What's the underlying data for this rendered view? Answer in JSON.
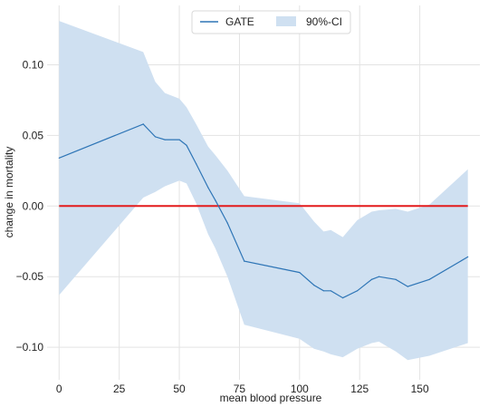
{
  "chart_data": {
    "type": "line",
    "xlabel": "mean blood pressure",
    "ylabel": "change in mortality",
    "xlim": [
      -5,
      175
    ],
    "ylim": [
      -0.123,
      0.142
    ],
    "xticks": [
      0,
      25,
      50,
      75,
      100,
      125,
      150
    ],
    "xtick_labels": [
      "0",
      "25",
      "50",
      "75",
      "100",
      "125",
      "150"
    ],
    "yticks": [
      -0.1,
      -0.05,
      0.0,
      0.05,
      0.1
    ],
    "ytick_labels": [
      "−0.10",
      "−0.05",
      "0.00",
      "0.05",
      "0.10"
    ],
    "grid": true,
    "legend_position": "top-center",
    "series": [
      {
        "name": "GATE",
        "color": "#2e75b6",
        "x": [
          0,
          35,
          40,
          44,
          50,
          53,
          57,
          62,
          65,
          70,
          77,
          100,
          106,
          110,
          113,
          118,
          124,
          130,
          133,
          140,
          145,
          154,
          170
        ],
        "y": [
          0.034,
          0.058,
          0.049,
          0.047,
          0.047,
          0.043,
          0.03,
          0.013,
          0.004,
          -0.012,
          -0.039,
          -0.047,
          -0.056,
          -0.06,
          -0.06,
          -0.065,
          -0.06,
          -0.052,
          -0.05,
          -0.052,
          -0.057,
          -0.052,
          -0.036
        ]
      }
    ],
    "band": {
      "name": "90%-CI",
      "color": "#cfe0f1",
      "x": [
        0,
        35,
        40,
        44,
        50,
        53,
        57,
        62,
        65,
        70,
        77,
        100,
        106,
        110,
        113,
        118,
        124,
        130,
        133,
        140,
        145,
        154,
        170
      ],
      "upper": [
        0.131,
        0.109,
        0.088,
        0.08,
        0.076,
        0.07,
        0.058,
        0.042,
        0.036,
        0.025,
        0.007,
        0.002,
        -0.011,
        -0.018,
        -0.017,
        -0.022,
        -0.01,
        -0.004,
        -0.003,
        -0.002,
        -0.004,
        0.001,
        0.026
      ],
      "lower": [
        -0.063,
        0.006,
        0.01,
        0.014,
        0.018,
        0.016,
        0.002,
        -0.02,
        -0.03,
        -0.05,
        -0.084,
        -0.094,
        -0.101,
        -0.103,
        -0.105,
        -0.107,
        -0.101,
        -0.097,
        -0.096,
        -0.103,
        -0.109,
        -0.106,
        -0.097
      ]
    },
    "reference_line": {
      "y": 0.0,
      "color": "#e31a1c"
    }
  }
}
